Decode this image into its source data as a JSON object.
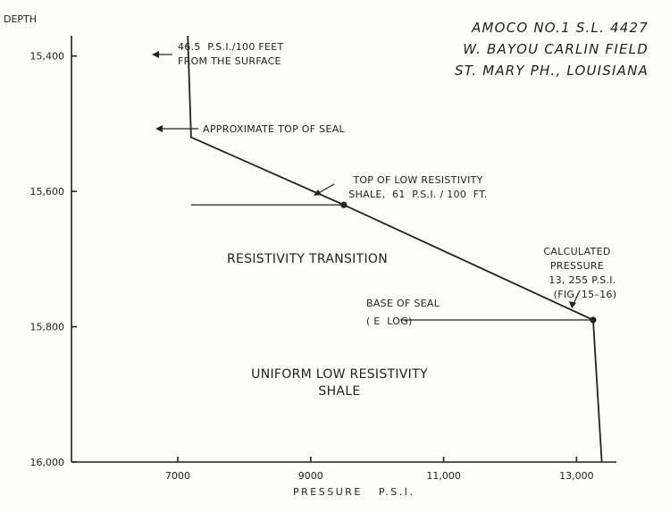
{
  "chart_data": {
    "type": "line",
    "title_lines": [
      "AMOCO NO.1 S.L. 4427",
      "W. BAYOU CARLIN FIELD",
      "ST. MARY PH., LOUISIANA"
    ],
    "xlabel": "PRESSURE   P.S.I.",
    "ylabel": "DEPTH",
    "xlim": [
      5400,
      13600
    ],
    "ylim": [
      15370,
      16000
    ],
    "y_inverted": true,
    "x_ticks": [
      7000,
      9000,
      11000,
      13000
    ],
    "x_tick_labels": [
      "7000",
      "9000",
      "11,000",
      "13,000"
    ],
    "y_ticks": [
      15400,
      15600,
      15800,
      16000
    ],
    "y_tick_labels": [
      "15,400",
      "15,600",
      "15,800",
      "16,000"
    ],
    "grid": false,
    "series": [
      {
        "x": [
          7150,
          7200,
          9500,
          13250,
          13380
        ],
        "y": [
          15370,
          15520,
          15620,
          15790,
          16000
        ]
      }
    ],
    "markers": [
      {
        "x": 9500,
        "y": 15620
      },
      {
        "x": 13250,
        "y": 15790
      }
    ],
    "reference_lines": [
      {
        "x1": 7200,
        "x2": 9500,
        "y": 15620
      },
      {
        "x1": 10350,
        "x2": 13250,
        "y": 15790
      }
    ],
    "annotations": {
      "gradient_top": [
        "46.5  P.S.I./100 FEET",
        "FROM THE SURFACE"
      ],
      "top_of_seal": "APPROXIMATE TOP OF SEAL",
      "low_res_shale": [
        "TOP OF LOW RESISTIVITY",
        "SHALE,  61  P.S.I. / 100  FT."
      ],
      "calculated": [
        "CALCULATED",
        "PRESSURE",
        "13, 255 P.S.I.",
        "(FIG. 15–16)"
      ],
      "base_of_seal": [
        "BASE OF SEAL",
        "( E  LOG)"
      ],
      "transition": "RESISTIVITY TRANSITION",
      "uniform": [
        "UNIFORM LOW RESISTIVITY",
        "SHALE"
      ]
    }
  }
}
